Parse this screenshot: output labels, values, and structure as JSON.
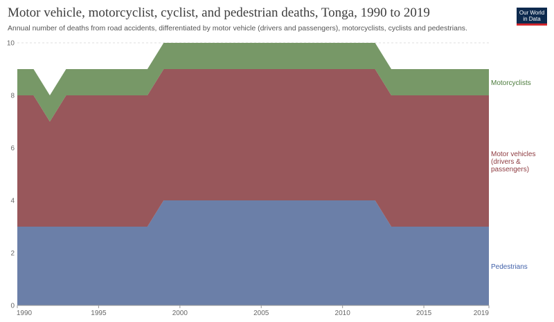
{
  "header": {
    "title": "Motor vehicle, motorcyclist, cyclist, and pedestrian deaths, Tonga, 1990 to 2019",
    "subtitle": "Annual number of deaths from road accidents, differentiated by motor vehicle (drivers and passengers), motorcyclists, cyclists and pedestrians.",
    "logo_line1": "Our World",
    "logo_line2": "in Data"
  },
  "colors": {
    "pedestrians": "#6b7fa8",
    "motor_vehicles": "#98575b",
    "motorcyclists": "#779867",
    "pedestrians_label": "#3f5fa8",
    "motor_vehicles_label": "#8e3b40",
    "motorcyclists_label": "#4a7a3a"
  },
  "chart_data": {
    "type": "area",
    "stacked": true,
    "x": [
      1990,
      1991,
      1992,
      1993,
      1994,
      1995,
      1996,
      1997,
      1998,
      1999,
      2000,
      2001,
      2002,
      2003,
      2004,
      2005,
      2006,
      2007,
      2008,
      2009,
      2010,
      2011,
      2012,
      2013,
      2014,
      2015,
      2016,
      2017,
      2018,
      2019
    ],
    "series": [
      {
        "name": "Pedestrians",
        "values": [
          3,
          3,
          3,
          3,
          3,
          3,
          3,
          3,
          3,
          4,
          4,
          4,
          4,
          4,
          4,
          4,
          4,
          4,
          4,
          4,
          4,
          4,
          4,
          3,
          3,
          3,
          3,
          3,
          3,
          3
        ]
      },
      {
        "name": "Motor vehicles (drivers & passengers)",
        "values": [
          5,
          5,
          4,
          5,
          5,
          5,
          5,
          5,
          5,
          5,
          5,
          5,
          5,
          5,
          5,
          5,
          5,
          5,
          5,
          5,
          5,
          5,
          5,
          5,
          5,
          5,
          5,
          5,
          5,
          5
        ]
      },
      {
        "name": "Motorcyclists",
        "values": [
          1,
          1,
          1,
          1,
          1,
          1,
          1,
          1,
          1,
          1,
          1,
          1,
          1,
          1,
          1,
          1,
          1,
          1,
          1,
          1,
          1,
          1,
          1,
          1,
          1,
          1,
          1,
          1,
          1,
          1
        ]
      }
    ],
    "legend_lines": [
      [
        "Pedestrians"
      ],
      [
        "Motor vehicles",
        "(drivers &",
        "passengers)"
      ],
      [
        "Motorcyclists"
      ]
    ],
    "ylim": [
      0,
      10
    ],
    "yticks": [
      0,
      2,
      4,
      6,
      8,
      10
    ],
    "xticks": [
      1990,
      1995,
      2000,
      2005,
      2010,
      2015,
      2019
    ],
    "xlim": [
      1990,
      2019
    ],
    "grid": true,
    "legend": "right"
  }
}
